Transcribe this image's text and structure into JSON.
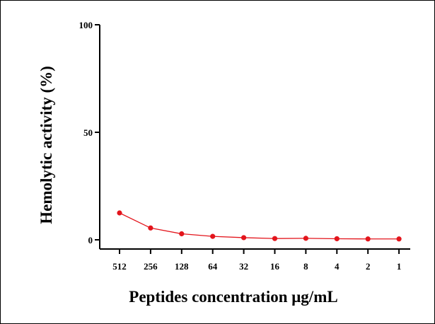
{
  "chart_data": {
    "type": "line",
    "title": "",
    "xlabel": "Peptides concentration μg/mL",
    "ylabel": "Hemolytic activity (%)",
    "categories": [
      "512",
      "256",
      "128",
      "64",
      "32",
      "16",
      "8",
      "4",
      "2",
      "1"
    ],
    "y_ticks": [
      "0",
      "50",
      "100"
    ],
    "ylim": [
      0,
      100
    ],
    "series": [
      {
        "values": [
          12.5,
          5.5,
          2.8,
          1.6,
          1.0,
          0.6,
          0.7,
          0.5,
          0.4,
          0.4
        ],
        "color": "#e3151c"
      }
    ],
    "grid": false,
    "legend": "none"
  }
}
